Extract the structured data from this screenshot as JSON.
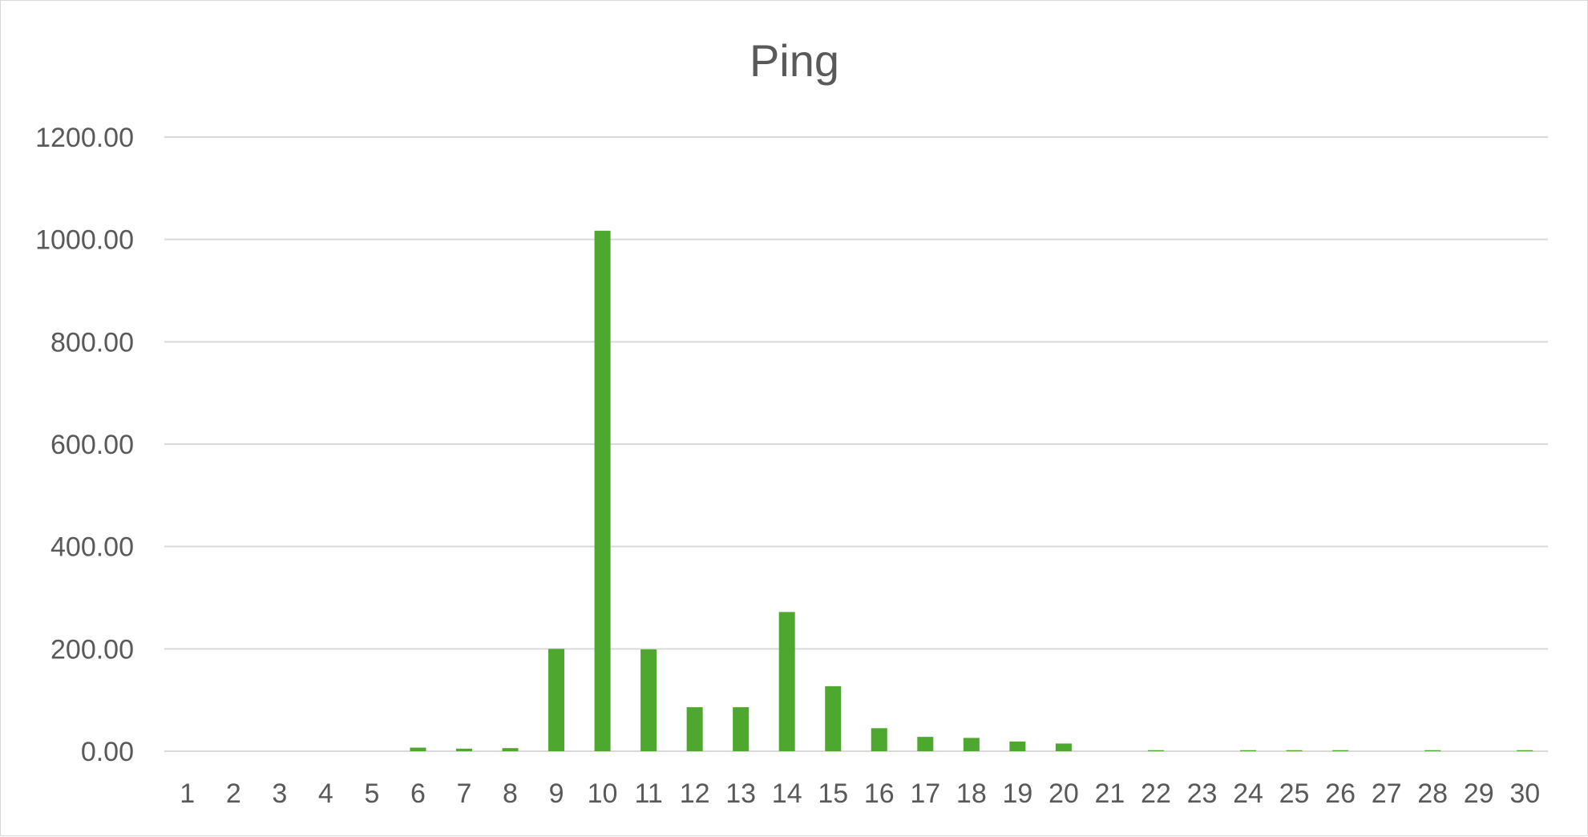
{
  "chart_data": {
    "type": "bar",
    "title": "Ping",
    "xlabel": "",
    "ylabel": "",
    "categories": [
      "1",
      "2",
      "3",
      "4",
      "5",
      "6",
      "7",
      "8",
      "9",
      "10",
      "11",
      "12",
      "13",
      "14",
      "15",
      "16",
      "17",
      "18",
      "19",
      "20",
      "21",
      "22",
      "23",
      "24",
      "25",
      "26",
      "27",
      "28",
      "29",
      "30"
    ],
    "values": [
      0,
      0,
      0,
      0,
      0,
      7,
      5,
      6,
      200,
      1017,
      199,
      86,
      86,
      272,
      127,
      45,
      28,
      26,
      19,
      15,
      0,
      2,
      0,
      2,
      2,
      2,
      0,
      2,
      0,
      2
    ],
    "ylim": [
      0,
      1200
    ],
    "yticks": [
      "0.00",
      "200.00",
      "400.00",
      "600.00",
      "800.00",
      "1000.00",
      "1200.00"
    ],
    "ytick_values": [
      0,
      200,
      400,
      600,
      800,
      1000,
      1200
    ],
    "grid": true,
    "legend": "none",
    "bar_color": "#4ea72e",
    "grid_color": "#d9d9d9",
    "text_color": "#595959"
  }
}
